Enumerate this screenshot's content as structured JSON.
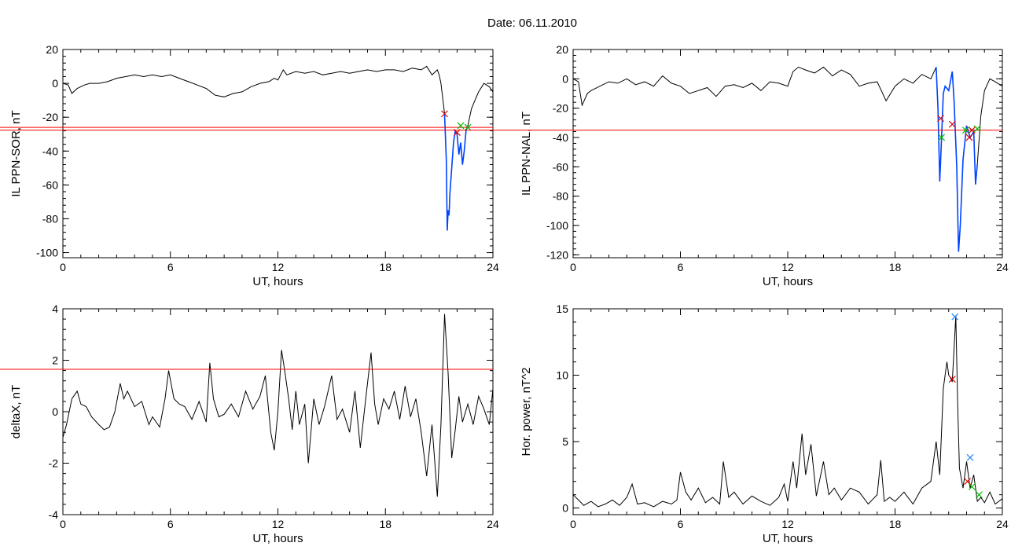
{
  "page": {
    "title": "Date:  06.11.2010"
  },
  "colors": {
    "trace": "#000000",
    "threshold": "#ff0000",
    "highlight": "#0044ff",
    "marker_red": "#e00000",
    "marker_green": "#00bb00",
    "marker_blue": "#2288ff"
  },
  "chart_data": [
    {
      "id": "p1",
      "type": "line",
      "xlabel": "UT, hours",
      "ylabel": "IL PPN-SOR, nT",
      "xlim": [
        0,
        24
      ],
      "ylim": [
        -103,
        20
      ],
      "xticks": [
        "0",
        "6",
        "12",
        "18",
        "24"
      ],
      "yticks": [
        "20",
        "0",
        "-20",
        "-40",
        "-60",
        "-80",
        "-100"
      ],
      "threshold": -26,
      "series": [
        {
          "x": [
            0,
            0.3,
            0.5,
            0.8,
            1.2,
            1.5,
            2,
            2.5,
            3,
            3.5,
            4,
            4.5,
            5,
            5.5,
            6,
            6.5,
            7,
            7.5,
            8,
            8.5,
            9,
            9.5,
            10,
            10.5,
            11,
            11.5,
            11.8,
            12,
            12.3,
            12.5,
            13,
            13.5,
            14,
            14.5,
            15,
            15.5,
            16,
            16.5,
            17,
            17.5,
            18,
            18.5,
            19,
            19.5,
            20,
            20.3,
            20.6,
            20.9,
            21,
            21.1,
            21.3,
            21.4,
            21.45,
            21.5,
            21.55,
            21.6,
            21.7,
            21.8,
            21.9,
            22,
            22.1,
            22.2,
            22.3,
            22.4,
            22.5,
            22.6,
            22.7,
            22.8,
            23,
            23.2,
            23.5,
            23.8,
            24
          ],
          "y": [
            0,
            -1,
            -6,
            -3,
            -1,
            0,
            0,
            1,
            3,
            4,
            5,
            4,
            5,
            4,
            5,
            3,
            1,
            -1,
            -3,
            -7,
            -8,
            -6,
            -5,
            -2,
            0,
            1,
            3,
            2,
            8,
            5,
            7,
            6,
            7,
            5,
            6,
            7,
            6,
            7,
            8,
            7,
            8,
            8,
            7,
            9,
            8,
            10,
            5,
            8,
            5,
            0,
            -18,
            -45,
            -87,
            -75,
            -78,
            -65,
            -50,
            -35,
            -28,
            -30,
            -42,
            -35,
            -48,
            -40,
            -28,
            -25,
            -20,
            -15,
            -10,
            -5,
            0,
            -2,
            -5
          ]
        }
      ],
      "highlight_x": [
        21.3,
        22.6
      ],
      "markers": [
        {
          "x": 21.3,
          "y": -18,
          "color": "red"
        },
        {
          "x": 22.0,
          "y": -29,
          "color": "red"
        },
        {
          "x": 22.2,
          "y": -25,
          "color": "green"
        },
        {
          "x": 22.6,
          "y": -26,
          "color": "green"
        }
      ]
    },
    {
      "id": "p2",
      "type": "line",
      "xlabel": "UT, hours",
      "ylabel": "IL PPN-NAL, nT",
      "xlim": [
        0,
        24
      ],
      "ylim": [
        -122,
        20
      ],
      "xticks": [
        "0",
        "6",
        "12",
        "18",
        "24"
      ],
      "yticks": [
        "20",
        "0",
        "-20",
        "-40",
        "-60",
        "-80",
        "-100",
        "-120"
      ],
      "threshold": -35,
      "series": [
        {
          "x": [
            0,
            0.3,
            0.5,
            0.8,
            1,
            1.5,
            2,
            2.5,
            3,
            3.5,
            4,
            4.5,
            5,
            5.5,
            6,
            6.5,
            7,
            7.5,
            8,
            8.5,
            9,
            9.5,
            10,
            10.5,
            11,
            11.5,
            12,
            12.3,
            12.6,
            13,
            13.5,
            14,
            14.5,
            15,
            15.5,
            16,
            16.5,
            17,
            17.5,
            18,
            18.5,
            19,
            19.5,
            20,
            20.3,
            20.4,
            20.5,
            20.6,
            20.7,
            20.8,
            21,
            21.2,
            21.3,
            21.45,
            21.55,
            21.65,
            21.8,
            22,
            22.2,
            22.4,
            22.5,
            22.6,
            22.8,
            23,
            23.3,
            23.6,
            24
          ],
          "y": [
            0,
            -2,
            -18,
            -10,
            -8,
            -5,
            -2,
            -3,
            0,
            -4,
            -2,
            -5,
            2,
            -3,
            -5,
            -10,
            -8,
            -6,
            -12,
            -5,
            -4,
            -6,
            -3,
            -8,
            -2,
            -3,
            -5,
            5,
            8,
            6,
            4,
            8,
            2,
            6,
            3,
            -5,
            -3,
            -2,
            -15,
            -5,
            0,
            -3,
            3,
            0,
            8,
            -20,
            -70,
            -40,
            -10,
            -5,
            -8,
            5,
            -15,
            -60,
            -118,
            -100,
            -55,
            -32,
            -40,
            -36,
            -72,
            -58,
            -25,
            -8,
            0,
            -2,
            -5
          ]
        }
      ],
      "highlight_x": [
        20.3,
        22.6
      ],
      "markers": [
        {
          "x": 20.55,
          "y": -27,
          "color": "red"
        },
        {
          "x": 20.6,
          "y": -40,
          "color": "green"
        },
        {
          "x": 21.2,
          "y": -31,
          "color": "red"
        },
        {
          "x": 21.95,
          "y": -35,
          "color": "green"
        },
        {
          "x": 22.15,
          "y": -40,
          "color": "red"
        },
        {
          "x": 22.3,
          "y": -35,
          "color": "red"
        },
        {
          "x": 22.6,
          "y": -34,
          "color": "green"
        }
      ]
    },
    {
      "id": "p3",
      "type": "line",
      "xlabel": "UT, hours",
      "ylabel": "deltaX, nT",
      "xlim": [
        0,
        24
      ],
      "ylim": [
        -4,
        4
      ],
      "xticks": [
        "0",
        "6",
        "12",
        "18",
        "24"
      ],
      "yticks": [
        "4",
        "2",
        "0",
        "-2",
        "-4"
      ],
      "threshold": 1.65,
      "series": [
        {
          "x": [
            0,
            0.2,
            0.5,
            0.8,
            1,
            1.3,
            1.6,
            2,
            2.3,
            2.6,
            2.9,
            3.2,
            3.4,
            3.6,
            4,
            4.4,
            4.8,
            5,
            5.4,
            5.7,
            5.9,
            6.2,
            6.5,
            6.8,
            7.2,
            7.6,
            8,
            8.2,
            8.4,
            8.7,
            9,
            9.4,
            9.8,
            10.2,
            10.6,
            11,
            11.3,
            11.6,
            11.8,
            12,
            12.2,
            12.4,
            12.6,
            12.8,
            13,
            13.2,
            13.5,
            13.7,
            14,
            14.3,
            14.6,
            15,
            15.3,
            15.6,
            16,
            16.3,
            16.6,
            16.9,
            17.2,
            17.4,
            17.6,
            17.9,
            18.2,
            18.5,
            18.8,
            19.1,
            19.4,
            19.7,
            20,
            20.3,
            20.6,
            20.9,
            21.1,
            21.3,
            21.5,
            21.7,
            21.9,
            22.1,
            22.3,
            22.6,
            22.9,
            23.2,
            23.5,
            23.8,
            24
          ],
          "y": [
            -1,
            -0.5,
            0.5,
            0.8,
            0.3,
            0.2,
            -0.2,
            -0.5,
            -0.7,
            -0.6,
            0,
            1.1,
            0.5,
            0.8,
            0.2,
            0.4,
            -0.5,
            -0.2,
            -0.6,
            0.5,
            1.6,
            0.5,
            0.3,
            0.2,
            -0.3,
            0.4,
            -0.4,
            1.9,
            0.5,
            -0.2,
            -0.1,
            0.3,
            -0.2,
            0.8,
            0.1,
            0.6,
            1.4,
            -0.8,
            -1.5,
            0,
            2.4,
            1.5,
            0.5,
            -0.7,
            0.8,
            -0.5,
            0.3,
            -2,
            0.5,
            -0.5,
            0.2,
            1.4,
            -0.3,
            0.1,
            -0.8,
            0.8,
            -1.4,
            0.5,
            2.3,
            0.3,
            -0.5,
            0.5,
            0.1,
            0.8,
            -0.3,
            1,
            -0.2,
            0.5,
            -0.8,
            -2.5,
            -0.5,
            -3.3,
            -0.5,
            3.8,
            1.5,
            -1.8,
            -0.7,
            0.6,
            -0.4,
            0.3,
            -0.5,
            0.6,
            0.1,
            -0.5,
            0.9
          ]
        }
      ],
      "highlight_x": null,
      "markers": []
    },
    {
      "id": "p4",
      "type": "line",
      "xlabel": "UT, hours",
      "ylabel": "Hor. power, nT^2",
      "xlim": [
        0,
        24
      ],
      "ylim": [
        -0.5,
        15
      ],
      "xticks": [
        "0",
        "6",
        "12",
        "18",
        "24"
      ],
      "yticks": [
        "15",
        "10",
        "5",
        "0"
      ],
      "threshold": null,
      "series": [
        {
          "x": [
            0,
            0.3,
            0.6,
            1,
            1.4,
            1.8,
            2.2,
            2.6,
            3,
            3.3,
            3.6,
            4,
            4.5,
            5,
            5.5,
            5.8,
            6,
            6.3,
            6.6,
            7,
            7.4,
            7.8,
            8.2,
            8.4,
            8.7,
            9,
            9.5,
            10,
            10.5,
            11,
            11.5,
            11.8,
            12,
            12.3,
            12.5,
            12.8,
            13,
            13.3,
            13.6,
            14,
            14.3,
            14.6,
            15,
            15.5,
            16,
            16.5,
            17,
            17.2,
            17.4,
            17.7,
            18,
            18.5,
            19,
            19.5,
            20,
            20.3,
            20.5,
            20.7,
            20.9,
            21,
            21.1,
            21.2,
            21.3,
            21.4,
            21.5,
            21.6,
            21.8,
            22,
            22.2,
            22.4,
            22.6,
            22.8,
            23,
            23.3,
            23.6,
            24
          ],
          "y": [
            1,
            0.6,
            0.2,
            0.5,
            0.1,
            0.3,
            0.6,
            0.2,
            0.8,
            1.8,
            0.3,
            0.4,
            0.1,
            0.5,
            0.3,
            0.6,
            2.7,
            1.2,
            0.6,
            1.5,
            0.4,
            0.8,
            0.3,
            3.5,
            0.8,
            1.2,
            0.3,
            0.9,
            0.5,
            0.2,
            0.8,
            1.8,
            0.5,
            3.5,
            1.5,
            5.6,
            2.5,
            4.8,
            0.9,
            3.5,
            1,
            1.5,
            0.6,
            1.5,
            1.2,
            0.3,
            1,
            3.6,
            0.5,
            0.8,
            0.5,
            1.2,
            0.3,
            1.5,
            2,
            5,
            2.5,
            9,
            11,
            10,
            9.8,
            9.5,
            12,
            14.5,
            8,
            3,
            1.5,
            3.5,
            1.5,
            2.5,
            0.5,
            0.8,
            0.4,
            1.2,
            0.3,
            0.7
          ]
        }
      ],
      "highlight_x": null,
      "markers": [
        {
          "x": 21.2,
          "y": 9.7,
          "color": "red"
        },
        {
          "x": 21.35,
          "y": 14.4,
          "color": "blue"
        },
        {
          "x": 22.05,
          "y": 2.0,
          "color": "red"
        },
        {
          "x": 22.2,
          "y": 3.8,
          "color": "blue"
        },
        {
          "x": 22.3,
          "y": 1.6,
          "color": "green"
        },
        {
          "x": 22.7,
          "y": 1.0,
          "color": "green"
        }
      ]
    }
  ]
}
